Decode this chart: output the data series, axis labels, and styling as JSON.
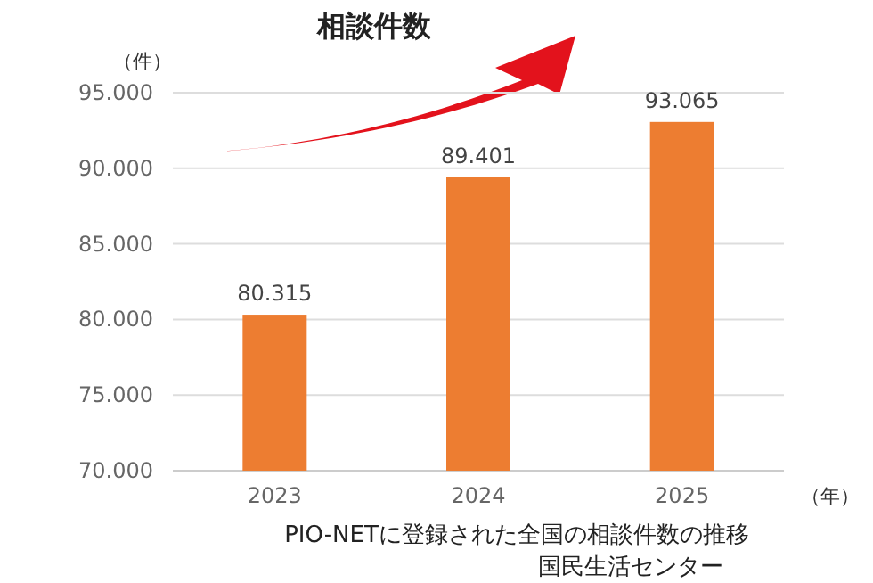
{
  "chart_data": {
    "type": "bar",
    "title": "相談件数",
    "ylabel": "（件）",
    "xlabel": "（年）",
    "categories": [
      "2023",
      "2024",
      "2025"
    ],
    "values": [
      80315,
      89401,
      93065
    ],
    "value_labels": [
      "80.315",
      "89.401",
      "93.065"
    ],
    "color": "#ed7d31",
    "ylim": [
      70000,
      95000
    ],
    "yticks": [
      {
        "value": 70000,
        "label": "70.000"
      },
      {
        "value": 75000,
        "label": "75.000"
      },
      {
        "value": 80000,
        "label": "80.000"
      },
      {
        "value": 85000,
        "label": "85.000"
      },
      {
        "value": 90000,
        "label": "90.000"
      },
      {
        "value": 95000,
        "label": "95.000"
      }
    ],
    "grid": "y",
    "annotations": [
      "PIO-NETに登録された全国の相談件数の推移",
      "国民生活センター"
    ]
  }
}
